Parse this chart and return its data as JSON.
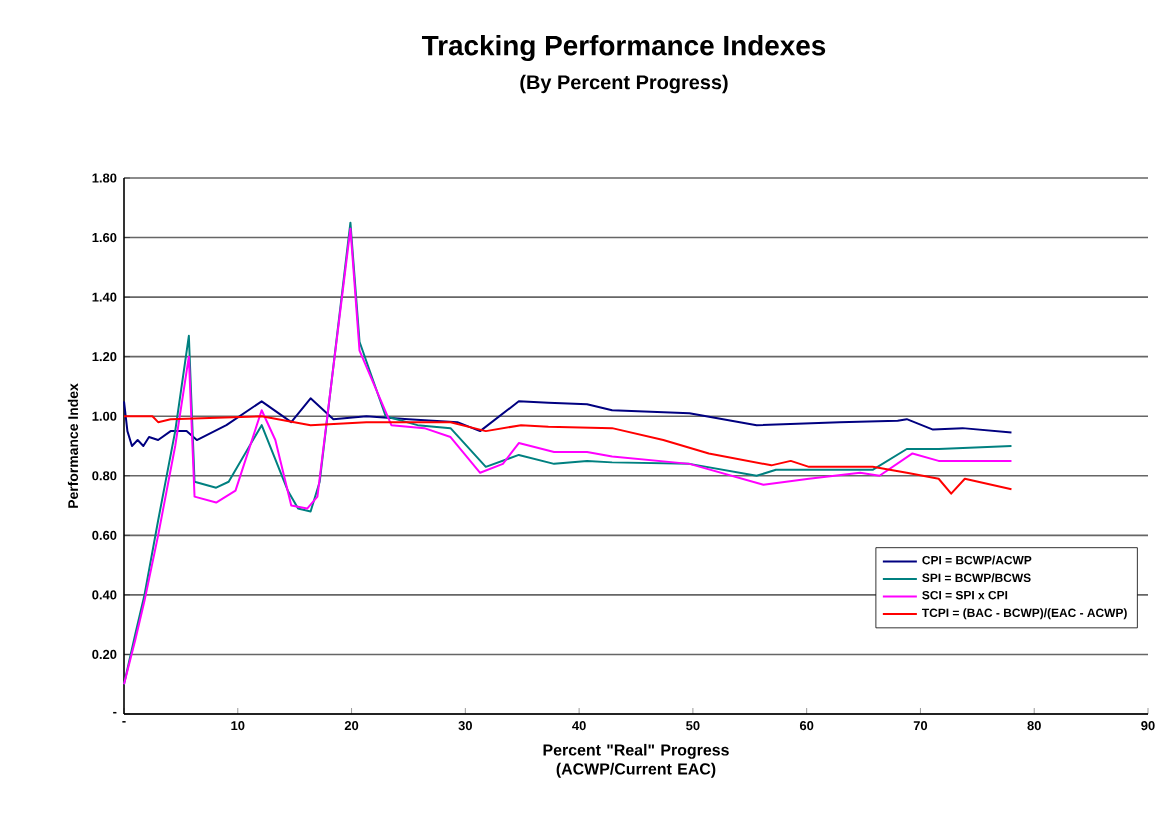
{
  "chart_data": {
    "type": "line",
    "title": "Tracking Performance Indexes",
    "subtitle": "(By Percent Progress)",
    "xlabel": "Percent \"Real\" Progress (ACWP/Current EAC)",
    "ylabel": "Performance Index",
    "xlim": [
      0,
      90
    ],
    "xticks": [
      {
        "value": 0,
        "label": "-"
      },
      10,
      20,
      30,
      40,
      50,
      60,
      70,
      80,
      90
    ],
    "ylim": [
      0,
      1.8
    ],
    "yticks": [
      {
        "value": 0,
        "label": "-"
      },
      {
        "value": 0.2,
        "label": "0.20"
      },
      {
        "value": 0.4,
        "label": "0.40"
      },
      {
        "value": 0.6,
        "label": "0.60"
      },
      {
        "value": 0.8,
        "label": "0.80"
      },
      {
        "value": 1.0,
        "label": "1.00"
      },
      {
        "value": 1.2,
        "label": "1.20"
      },
      {
        "value": 1.4,
        "label": "1.40"
      },
      {
        "value": 1.6,
        "label": "1.60"
      },
      {
        "value": 1.8,
        "label": "1.80"
      }
    ],
    "grid": "y",
    "legend": "bottom right",
    "marker": "none",
    "line_style": "solid",
    "series": [
      {
        "name": "CPI = BCWP/ACWP",
        "color": "#000080",
        "x": [
          0,
          0.3,
          0.7,
          1.2,
          1.7,
          2.2,
          3,
          4.1,
          5.5,
          6.4,
          9,
          12.1,
          14.7,
          16.4,
          18.4,
          21.3,
          25,
          29.3,
          31.3,
          34.7,
          37.3,
          40.7,
          42.9,
          49.7,
          55.6,
          62.9,
          68,
          68.8,
          71.1,
          73.7,
          78
        ],
        "values": [
          1.05,
          0.95,
          0.9,
          0.92,
          0.9,
          0.93,
          0.92,
          0.95,
          0.95,
          0.92,
          0.97,
          1.05,
          0.98,
          1.06,
          0.99,
          1.0,
          0.99,
          0.98,
          0.95,
          1.05,
          1.045,
          1.04,
          1.02,
          1.01,
          0.97,
          0.98,
          0.985,
          0.99,
          0.955,
          0.96,
          0.945
        ]
      },
      {
        "name": "SPI = BCWP/BCWS",
        "color": "#008080",
        "x": [
          0,
          1,
          1.8,
          3,
          4.5,
          5.7,
          6.2,
          8.1,
          9.2,
          12.1,
          14.4,
          15.3,
          16.4,
          17.2,
          19.9,
          20.7,
          23,
          25.8,
          28.7,
          31.8,
          34.7,
          37.8,
          40.7,
          42.9,
          49.7,
          55.6,
          57.3,
          65.8,
          68.8,
          71.6,
          78
        ],
        "values": [
          0.1,
          0.27,
          0.4,
          0.65,
          0.95,
          1.27,
          0.78,
          0.76,
          0.78,
          0.97,
          0.75,
          0.69,
          0.68,
          0.78,
          1.65,
          1.25,
          1.0,
          0.97,
          0.96,
          0.83,
          0.87,
          0.84,
          0.85,
          0.845,
          0.84,
          0.8,
          0.82,
          0.82,
          0.89,
          0.89,
          0.9
        ]
      },
      {
        "name": "SCI = SPI x CPI",
        "color": "#ff00ff",
        "x": [
          0,
          1,
          1.8,
          3,
          4.5,
          5.7,
          6.2,
          8.1,
          9.8,
          12.1,
          13.3,
          14.7,
          16.1,
          17,
          19.9,
          20.7,
          23.5,
          26.4,
          28.7,
          31.3,
          33.3,
          34.7,
          37.8,
          40.7,
          42.9,
          49.7,
          56.2,
          60.2,
          64.7,
          66.4,
          69.3,
          71.6,
          78
        ],
        "values": [
          0.1,
          0.25,
          0.38,
          0.6,
          0.9,
          1.2,
          0.73,
          0.71,
          0.75,
          1.02,
          0.92,
          0.7,
          0.69,
          0.73,
          1.63,
          1.22,
          0.97,
          0.96,
          0.93,
          0.81,
          0.84,
          0.91,
          0.88,
          0.88,
          0.865,
          0.84,
          0.77,
          0.79,
          0.81,
          0.8,
          0.875,
          0.85,
          0.85
        ]
      },
      {
        "name": "TCPI = (BAC - BCWP)/(EAC - ACWP)",
        "color": "#ff0000",
        "x": [
          0,
          2.5,
          3,
          4.1,
          12.1,
          16.4,
          21.3,
          28.7,
          31.8,
          34.9,
          37.3,
          42.9,
          47.4,
          51.4,
          56.9,
          58.6,
          60.2,
          65.8,
          68.8,
          71.6,
          72.7,
          73.9,
          78
        ],
        "values": [
          1.0,
          1.0,
          0.98,
          0.99,
          1.0,
          0.97,
          0.98,
          0.98,
          0.95,
          0.97,
          0.965,
          0.96,
          0.92,
          0.875,
          0.835,
          0.85,
          0.83,
          0.83,
          0.81,
          0.79,
          0.74,
          0.79,
          0.755
        ]
      }
    ]
  }
}
